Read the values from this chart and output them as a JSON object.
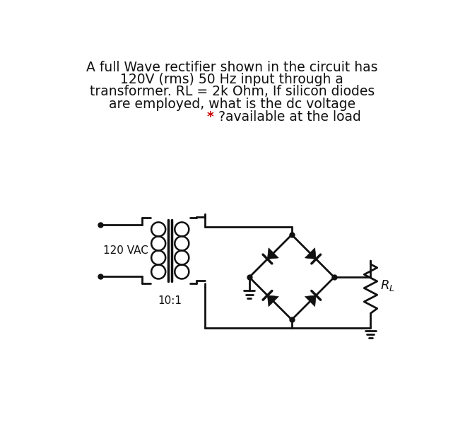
{
  "bg_color": "#ffffff",
  "title_lines": [
    "A full Wave rectifier shown in the circuit has",
    "120V (rms) 50 Hz input through a",
    "transformer. RL = 2k Ohm, If silicon diodes",
    "are employed, what is the dc voltage"
  ],
  "last_line_plain": "?available at the load",
  "last_line_star": "* ",
  "star_color": "#cc0000",
  "text_color": "#111111",
  "title_fontsize": 13.5,
  "label_120vac": "120 VAC",
  "label_101": "10:1",
  "label_RL": "$R_L$"
}
